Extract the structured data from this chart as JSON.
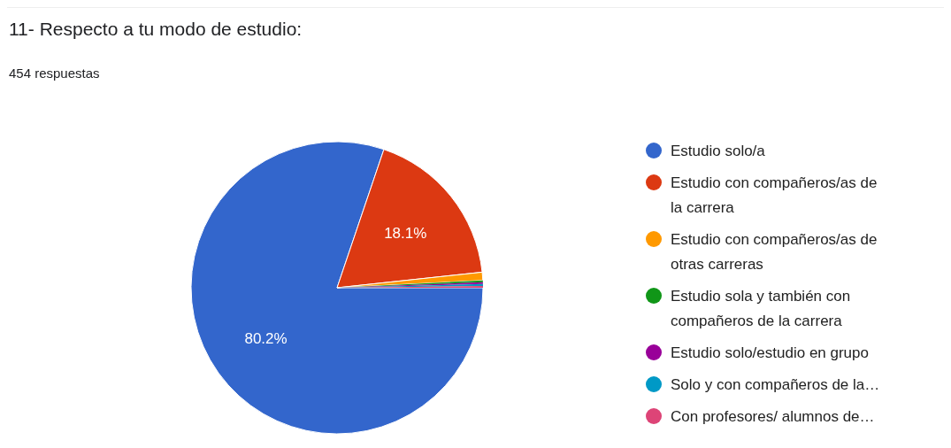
{
  "chart_data": {
    "type": "pie",
    "title": "11- Respecto a tu modo de estudio:",
    "subtitle": "454 respuestas",
    "categories": [
      "Estudio solo/a",
      "Estudio con compañeros/as de la carrera",
      "Estudio con compañeros/as de otras carreras",
      "Estudio sola y también con compañeros de la carrera",
      "Estudio solo/estudio en grupo",
      "Solo y con compañeros de la…",
      "Con profesores/ alumnos de…"
    ],
    "values": [
      80.2,
      18.1,
      0.9,
      0.2,
      0.2,
      0.2,
      0.2
    ],
    "value_labels": [
      "80.2%",
      "18.1%",
      null,
      null,
      null,
      null,
      null
    ],
    "colors": [
      "#3366cc",
      "#dc3912",
      "#ff9900",
      "#109618",
      "#990099",
      "#0099c6",
      "#dd4477"
    ],
    "legend": "right"
  }
}
